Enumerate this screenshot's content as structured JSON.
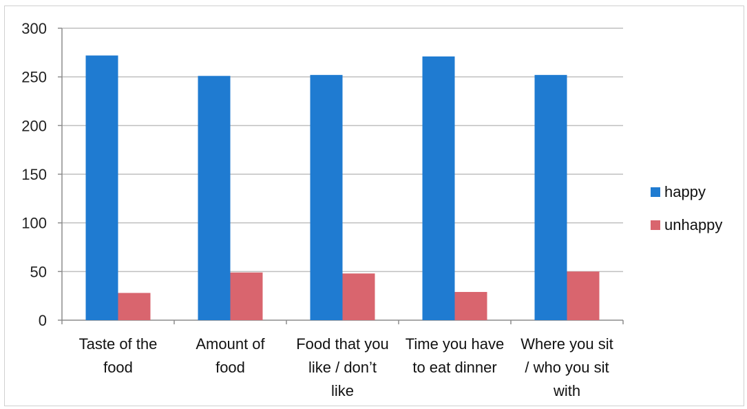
{
  "chart_data": {
    "type": "bar",
    "categories": [
      [
        "Taste of the",
        "food"
      ],
      [
        "Amount of",
        "food"
      ],
      [
        "Food that you",
        "like / don’t",
        "like"
      ],
      [
        "Time you have",
        "to eat dinner"
      ],
      [
        "Where you sit",
        "/ who you sit",
        "with"
      ]
    ],
    "series": [
      {
        "name": "happy",
        "values": [
          272,
          251,
          252,
          271,
          252
        ],
        "color": "#1f7bd1"
      },
      {
        "name": "unhappy",
        "values": [
          28,
          49,
          48,
          29,
          50
        ],
        "color": "#d9656e"
      }
    ],
    "ylim": [
      0,
      300
    ],
    "yticks": [
      0,
      50,
      100,
      150,
      200,
      250,
      300
    ],
    "title": "",
    "xlabel": "",
    "ylabel": "",
    "grid": true,
    "legend_position": "right",
    "colors": {
      "gridline": "#bfbfbf",
      "axis": "#8c8c8c"
    }
  }
}
